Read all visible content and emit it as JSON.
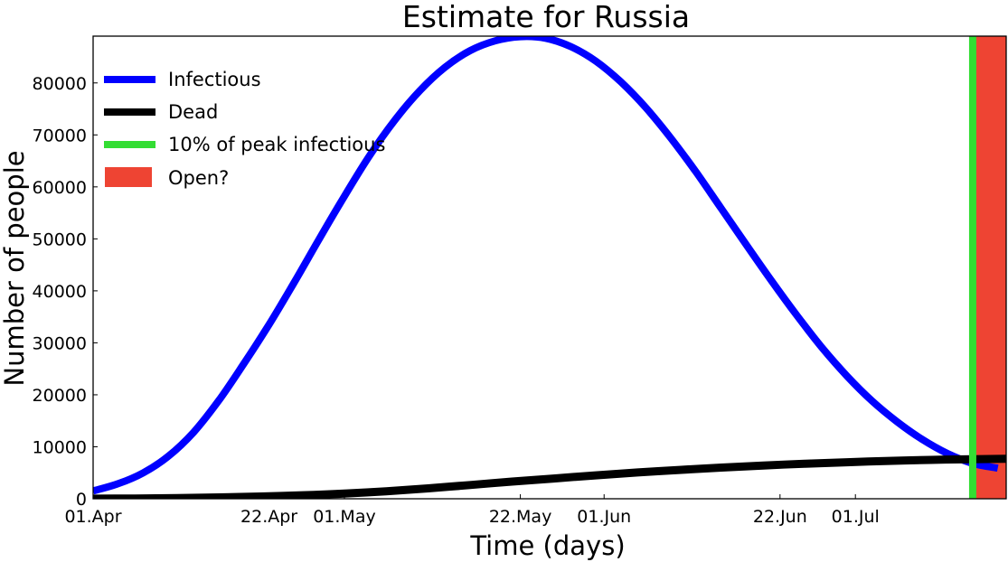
{
  "chart_data": {
    "type": "line",
    "title": "Estimate for Russia",
    "xlabel": "Time (days)",
    "ylabel": "Number of people",
    "x_unit": "date",
    "xlim": [
      "2020-04-01",
      "2020-07-19"
    ],
    "ylim": [
      0,
      89000
    ],
    "x_ticks": [
      {
        "date": "2020-04-01",
        "label": "01.Apr"
      },
      {
        "date": "2020-04-22",
        "label": "22.Apr"
      },
      {
        "date": "2020-05-01",
        "label": "01.May"
      },
      {
        "date": "2020-05-22",
        "label": "22.May"
      },
      {
        "date": "2020-06-01",
        "label": "01.Jun"
      },
      {
        "date": "2020-06-22",
        "label": "22.Jun"
      },
      {
        "date": "2020-07-01",
        "label": "01.Jul"
      }
    ],
    "y_ticks": [
      0,
      10000,
      20000,
      30000,
      40000,
      50000,
      60000,
      70000,
      80000
    ],
    "grid": false,
    "legend_position": "top-left",
    "series": [
      {
        "name": "Infectious",
        "color": "#0000ff",
        "points": [
          [
            "2020-04-01",
            1500
          ],
          [
            "2020-04-04",
            2900
          ],
          [
            "2020-04-07",
            5000
          ],
          [
            "2020-04-10",
            8200
          ],
          [
            "2020-04-13",
            12800
          ],
          [
            "2020-04-16",
            18900
          ],
          [
            "2020-04-19",
            26000
          ],
          [
            "2020-04-22",
            33500
          ],
          [
            "2020-04-25",
            41600
          ],
          [
            "2020-04-28",
            50000
          ],
          [
            "2020-05-01",
            58200
          ],
          [
            "2020-05-04",
            66000
          ],
          [
            "2020-05-07",
            72800
          ],
          [
            "2020-05-10",
            78500
          ],
          [
            "2020-05-13",
            83000
          ],
          [
            "2020-05-16",
            86200
          ],
          [
            "2020-05-19",
            88100
          ],
          [
            "2020-05-22",
            88900
          ],
          [
            "2020-05-25",
            88600
          ],
          [
            "2020-05-28",
            87000
          ],
          [
            "2020-05-31",
            84200
          ],
          [
            "2020-06-03",
            80200
          ],
          [
            "2020-06-06",
            75200
          ],
          [
            "2020-06-09",
            69300
          ],
          [
            "2020-06-12",
            62800
          ],
          [
            "2020-06-15",
            55800
          ],
          [
            "2020-06-18",
            48800
          ],
          [
            "2020-06-21",
            41900
          ],
          [
            "2020-06-24",
            35300
          ],
          [
            "2020-06-27",
            29100
          ],
          [
            "2020-06-30",
            23600
          ],
          [
            "2020-07-03",
            18800
          ],
          [
            "2020-07-06",
            14800
          ],
          [
            "2020-07-09",
            11400
          ],
          [
            "2020-07-12",
            8700
          ],
          [
            "2020-07-15",
            6800
          ],
          [
            "2020-07-18",
            5900
          ]
        ]
      },
      {
        "name": "Dead",
        "color": "#000000",
        "points": [
          [
            "2020-04-01",
            20
          ],
          [
            "2020-04-06",
            60
          ],
          [
            "2020-04-11",
            140
          ],
          [
            "2020-04-16",
            260
          ],
          [
            "2020-04-21",
            440
          ],
          [
            "2020-04-26",
            680
          ],
          [
            "2020-05-01",
            1000
          ],
          [
            "2020-05-06",
            1450
          ],
          [
            "2020-05-11",
            2000
          ],
          [
            "2020-05-16",
            2650
          ],
          [
            "2020-05-21",
            3300
          ],
          [
            "2020-05-26",
            3900
          ],
          [
            "2020-05-31",
            4500
          ],
          [
            "2020-06-05",
            5050
          ],
          [
            "2020-06-10",
            5550
          ],
          [
            "2020-06-15",
            6000
          ],
          [
            "2020-06-20",
            6400
          ],
          [
            "2020-06-25",
            6750
          ],
          [
            "2020-06-30",
            7030
          ],
          [
            "2020-07-05",
            7280
          ],
          [
            "2020-07-10",
            7480
          ],
          [
            "2020-07-15",
            7620
          ],
          [
            "2020-07-19",
            7700
          ]
        ]
      }
    ],
    "markers": [
      {
        "name": "10% of peak infectious",
        "type": "vline",
        "color": "#33dd33",
        "date": "2020-07-15"
      },
      {
        "name": "Open?",
        "type": "span",
        "color": "#ee4433",
        "from": "2020-07-15",
        "to": "2020-07-19"
      }
    ]
  }
}
